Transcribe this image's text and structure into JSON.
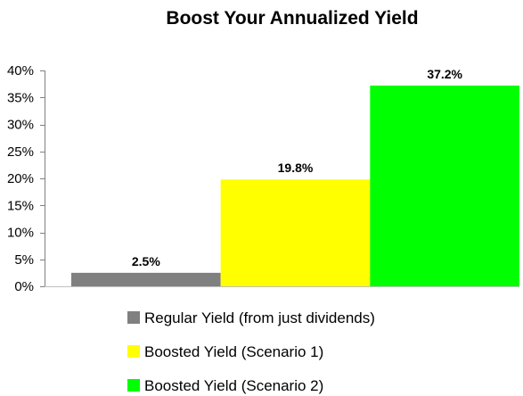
{
  "chart_data": {
    "type": "bar",
    "title": "Boost Your Annualized Yield",
    "xlabel": "",
    "ylabel": "",
    "ylim": [
      0,
      40
    ],
    "y_ticks": [
      "0%",
      "5%",
      "10%",
      "15%",
      "20%",
      "25%",
      "30%",
      "35%",
      "40%"
    ],
    "y_tick_values": [
      0,
      5,
      10,
      15,
      20,
      25,
      30,
      35,
      40
    ],
    "grid": false,
    "legend_position": "bottom",
    "series": [
      {
        "name": "Regular Yield (from just dividends)",
        "value": 2.5,
        "label": "2.5%",
        "color": "#808080"
      },
      {
        "name": "Boosted Yield (Scenario 1)",
        "value": 19.8,
        "label": "19.8%",
        "color": "#ffff00"
      },
      {
        "name": "Boosted Yield (Scenario 2)",
        "value": 37.2,
        "label": "37.2%",
        "color": "#00ff00"
      }
    ]
  }
}
